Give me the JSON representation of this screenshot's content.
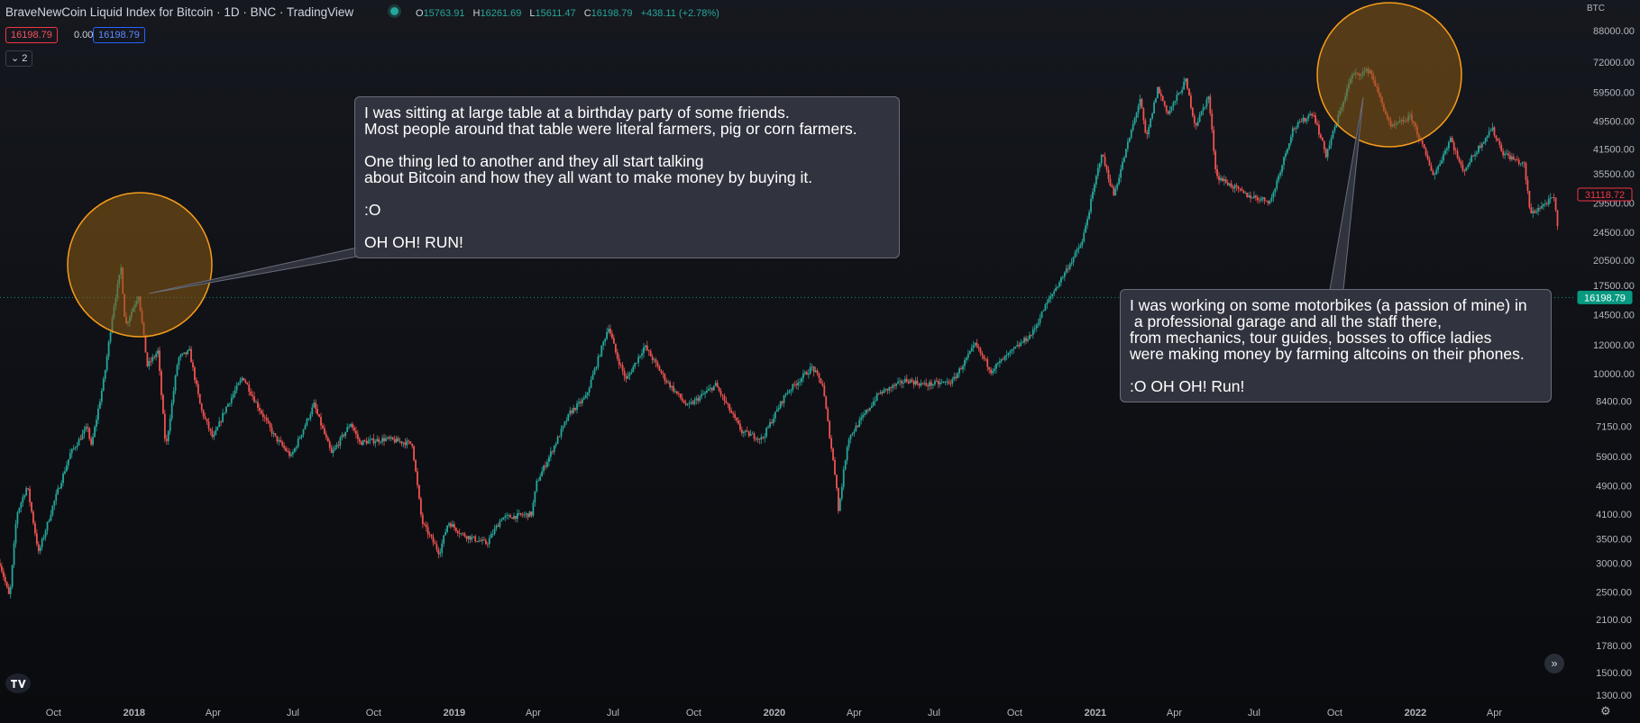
{
  "header": {
    "title": "BraveNewCoin Liquid Index for Bitcoin · 1D · BNC · TradingView",
    "ohlc": [
      {
        "key": "O",
        "value": "15763.91"
      },
      {
        "key": "H",
        "value": "16261.69"
      },
      {
        "key": "L",
        "value": "15611.47"
      },
      {
        "key": "C",
        "value": "16198.79"
      }
    ],
    "change": "+438.11 (+2.78%)",
    "bid": "16198.79",
    "spread": "0.00",
    "ask": "16198.79",
    "indicators_toggle": "2"
  },
  "currency": "BTC",
  "annotations": [
    {
      "lines": [
        "I was sitting at large table at a birthday party of some friends.",
        "Most people around that table were literal farmers, pig or corn farmers.",
        "",
        "One thing led to another and they all start talking",
        "about Bitcoin and how they all want to make money by buying it.",
        "",
        ":O",
        "",
        "OH OH! RUN!"
      ]
    },
    {
      "lines": [
        "I was working on some motorbikes (a passion of mine) in",
        " a professional garage and all the staff there,",
        "from mechanics, tour guides, bosses to office ladies",
        "were making money by farming altcoins on their phones.",
        "",
        ":O OH OH! Run!"
      ]
    }
  ],
  "price_labels": {
    "current": "16198.79",
    "marker": "31118.72"
  },
  "colors": {
    "up": "#26a69a",
    "down": "#ef5350",
    "circle_fill": "#8a5a12",
    "circle_stroke": "#f59c1a",
    "current_tag": "#089981",
    "marker_tag": "#f23645"
  },
  "icons": [
    "tradingview-logo-icon",
    "scroll-forward-icon",
    "settings-gear-icon",
    "live-status-icon",
    "chevron-down-icon"
  ],
  "chart_data": {
    "type": "candlestick",
    "interval": "1D",
    "y_scale": "log",
    "y_range": [
      1300,
      88000
    ],
    "x_range": [
      "2017-08-01",
      "2022-06-30"
    ],
    "y_ticks": [
      "88000.00",
      "72000.00",
      "59500.00",
      "49500.00",
      "41500.00",
      "35500.00",
      "29500.00",
      "24500.00",
      "20500.00",
      "17500.00",
      "14500.00",
      "12000.00",
      "10000.00",
      "8400.00",
      "7150.00",
      "5900.00",
      "4900.00",
      "4100.00",
      "3500.00",
      "3000.00",
      "2500.00",
      "2100.00",
      "1780.00",
      "1500.00",
      "1300.00"
    ],
    "x_ticks": [
      {
        "label": "Oct",
        "date": "2017-10-01",
        "bold": false
      },
      {
        "label": "2018",
        "date": "2018-01-01",
        "bold": true
      },
      {
        "label": "Apr",
        "date": "2018-04-01",
        "bold": false
      },
      {
        "label": "Jul",
        "date": "2018-07-01",
        "bold": false
      },
      {
        "label": "Oct",
        "date": "2018-10-01",
        "bold": false
      },
      {
        "label": "2019",
        "date": "2019-01-01",
        "bold": true
      },
      {
        "label": "Apr",
        "date": "2019-04-01",
        "bold": false
      },
      {
        "label": "Jul",
        "date": "2019-07-01",
        "bold": false
      },
      {
        "label": "Oct",
        "date": "2019-10-01",
        "bold": false
      },
      {
        "label": "2020",
        "date": "2020-01-01",
        "bold": true
      },
      {
        "label": "Apr",
        "date": "2020-04-01",
        "bold": false
      },
      {
        "label": "Jul",
        "date": "2020-07-01",
        "bold": false
      },
      {
        "label": "Oct",
        "date": "2020-10-01",
        "bold": false
      },
      {
        "label": "2021",
        "date": "2021-01-01",
        "bold": true
      },
      {
        "label": "Apr",
        "date": "2021-04-01",
        "bold": false
      },
      {
        "label": "Jul",
        "date": "2021-07-01",
        "bold": false
      },
      {
        "label": "Oct",
        "date": "2021-10-01",
        "bold": false
      },
      {
        "label": "2022",
        "date": "2022-01-01",
        "bold": true
      },
      {
        "label": "Apr",
        "date": "2022-04-01",
        "bold": false
      }
    ],
    "price_path": [
      [
        "2017-08-01",
        3000
      ],
      [
        "2017-08-12",
        2400
      ],
      [
        "2017-08-20",
        4100
      ],
      [
        "2017-09-01",
        4900
      ],
      [
        "2017-09-14",
        3200
      ],
      [
        "2017-09-30",
        4300
      ],
      [
        "2017-10-20",
        6000
      ],
      [
        "2017-11-10",
        7200
      ],
      [
        "2017-11-12",
        6100
      ],
      [
        "2017-11-28",
        9800
      ],
      [
        "2017-12-08",
        15000
      ],
      [
        "2017-12-17",
        19500
      ],
      [
        "2017-12-22",
        13500
      ],
      [
        "2018-01-06",
        16500
      ],
      [
        "2018-01-16",
        10500
      ],
      [
        "2018-01-28",
        11500
      ],
      [
        "2018-02-06",
        6200
      ],
      [
        "2018-02-20",
        11000
      ],
      [
        "2018-03-05",
        11500
      ],
      [
        "2018-03-18",
        8000
      ],
      [
        "2018-04-01",
        6600
      ],
      [
        "2018-04-15",
        8000
      ],
      [
        "2018-05-05",
        9800
      ],
      [
        "2018-05-20",
        8300
      ],
      [
        "2018-06-10",
        6700
      ],
      [
        "2018-06-29",
        5900
      ],
      [
        "2018-07-25",
        8200
      ],
      [
        "2018-08-14",
        6000
      ],
      [
        "2018-09-05",
        7300
      ],
      [
        "2018-09-15",
        6450
      ],
      [
        "2018-10-15",
        6600
      ],
      [
        "2018-11-14",
        6400
      ],
      [
        "2018-11-25",
        3900
      ],
      [
        "2018-12-15",
        3200
      ],
      [
        "2018-12-25",
        3900
      ],
      [
        "2019-01-10",
        3600
      ],
      [
        "2019-02-07",
        3400
      ],
      [
        "2019-02-24",
        4000
      ],
      [
        "2019-03-30",
        4100
      ],
      [
        "2019-04-05",
        5000
      ],
      [
        "2019-05-13",
        7800
      ],
      [
        "2019-05-31",
        8600
      ],
      [
        "2019-06-26",
        13500
      ],
      [
        "2019-07-05",
        11200
      ],
      [
        "2019-07-16",
        9600
      ],
      [
        "2019-08-06",
        11900
      ],
      [
        "2019-08-30",
        9600
      ],
      [
        "2019-09-24",
        8100
      ],
      [
        "2019-10-26",
        9300
      ],
      [
        "2019-11-25",
        6900
      ],
      [
        "2019-12-18",
        6600
      ],
      [
        "2020-01-14",
        8800
      ],
      [
        "2020-02-13",
        10400
      ],
      [
        "2020-02-25",
        9300
      ],
      [
        "2020-03-12",
        4900
      ],
      [
        "2020-03-13",
        4000
      ],
      [
        "2020-03-25",
        6600
      ],
      [
        "2020-04-29",
        8800
      ],
      [
        "2020-05-31",
        9600
      ],
      [
        "2020-06-20",
        9300
      ],
      [
        "2020-07-22",
        9500
      ],
      [
        "2020-08-17",
        12000
      ],
      [
        "2020-09-04",
        10200
      ],
      [
        "2020-10-21",
        12900
      ],
      [
        "2020-11-06",
        15500
      ],
      [
        "2020-11-30",
        19500
      ],
      [
        "2020-12-17",
        23000
      ],
      [
        "2021-01-08",
        40500
      ],
      [
        "2021-01-22",
        31000
      ],
      [
        "2021-02-21",
        57000
      ],
      [
        "2021-02-28",
        44000
      ],
      [
        "2021-03-13",
        61000
      ],
      [
        "2021-03-25",
        52000
      ],
      [
        "2021-04-14",
        64000
      ],
      [
        "2021-04-25",
        48000
      ],
      [
        "2021-05-10",
        58000
      ],
      [
        "2021-05-19",
        35000
      ],
      [
        "2021-06-22",
        31000
      ],
      [
        "2021-07-20",
        29800
      ],
      [
        "2021-08-14",
        47000
      ],
      [
        "2021-09-06",
        52500
      ],
      [
        "2021-09-21",
        40000
      ],
      [
        "2021-10-20",
        66000
      ],
      [
        "2021-11-10",
        68500
      ],
      [
        "2021-12-04",
        47500
      ],
      [
        "2021-12-27",
        51000
      ],
      [
        "2022-01-22",
        35000
      ],
      [
        "2022-02-10",
        44500
      ],
      [
        "2022-02-24",
        36000
      ],
      [
        "2022-03-29",
        47500
      ],
      [
        "2022-04-11",
        40500
      ],
      [
        "2022-05-05",
        37500
      ],
      [
        "2022-05-12",
        27500
      ],
      [
        "2022-06-08",
        30500
      ],
      [
        "2022-06-13",
        24000
      ]
    ],
    "current_price": 16198.79,
    "marker_price": 31118.72
  }
}
